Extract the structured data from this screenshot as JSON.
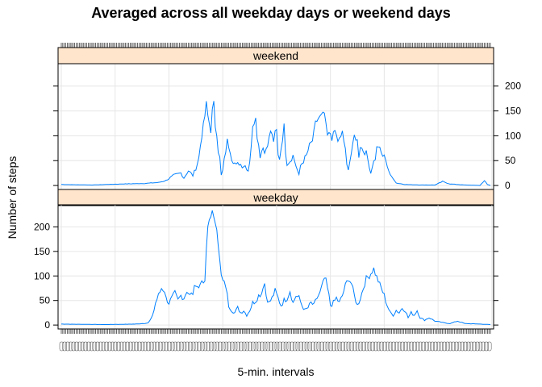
{
  "chart_data": {
    "type": "line",
    "title": "Averaged across all weekday days or weekend days",
    "xlabel": "5-min. intervals",
    "ylabel": "Number of steps",
    "ylim": [
      0,
      240
    ],
    "yticks": [
      0,
      50,
      100,
      150,
      200
    ],
    "x_intervals": 288,
    "grid": true,
    "color": "#0080ff",
    "strip_color": "#ffe5cc",
    "panels": [
      {
        "name": "weekend",
        "keypoints": [
          [
            0,
            2
          ],
          [
            20,
            1
          ],
          [
            40,
            3
          ],
          [
            55,
            4
          ],
          [
            65,
            6
          ],
          [
            70,
            10
          ],
          [
            75,
            20
          ],
          [
            80,
            25
          ],
          [
            82,
            15
          ],
          [
            85,
            30
          ],
          [
            88,
            20
          ],
          [
            90,
            35
          ],
          [
            92,
            55
          ],
          [
            93,
            80
          ],
          [
            95,
            120
          ],
          [
            96,
            140
          ],
          [
            97,
            165
          ],
          [
            98,
            140
          ],
          [
            100,
            110
          ],
          [
            101,
            150
          ],
          [
            102,
            165
          ],
          [
            103,
            120
          ],
          [
            104,
            105
          ],
          [
            105,
            70
          ],
          [
            106,
            55
          ],
          [
            107,
            20
          ],
          [
            108,
            30
          ],
          [
            109,
            50
          ],
          [
            111,
            90
          ],
          [
            113,
            70
          ],
          [
            114,
            55
          ],
          [
            115,
            50
          ],
          [
            117,
            40
          ],
          [
            119,
            45
          ],
          [
            121,
            40
          ],
          [
            123,
            40
          ],
          [
            125,
            30
          ],
          [
            126,
            50
          ],
          [
            127,
            80
          ],
          [
            128,
            115
          ],
          [
            130,
            140
          ],
          [
            131,
            100
          ],
          [
            133,
            60
          ],
          [
            135,
            80
          ],
          [
            136,
            65
          ],
          [
            137,
            75
          ],
          [
            139,
            95
          ],
          [
            140,
            110
          ],
          [
            142,
            90
          ],
          [
            143,
            105
          ],
          [
            144,
            110
          ],
          [
            145,
            60
          ],
          [
            146,
            55
          ],
          [
            148,
            95
          ],
          [
            149,
            120
          ],
          [
            150,
            70
          ],
          [
            151,
            45
          ],
          [
            153,
            50
          ],
          [
            155,
            60
          ],
          [
            157,
            40
          ],
          [
            158,
            30
          ],
          [
            159,
            20
          ],
          [
            160,
            40
          ],
          [
            162,
            50
          ],
          [
            164,
            60
          ],
          [
            166,
            80
          ],
          [
            168,
            90
          ],
          [
            170,
            125
          ],
          [
            172,
            135
          ],
          [
            174,
            140
          ],
          [
            176,
            145
          ],
          [
            177,
            120
          ],
          [
            178,
            100
          ],
          [
            180,
            105
          ],
          [
            181,
            95
          ],
          [
            183,
            110
          ],
          [
            184,
            100
          ],
          [
            185,
            90
          ],
          [
            187,
            95
          ],
          [
            188,
            110
          ],
          [
            190,
            70
          ],
          [
            191,
            40
          ],
          [
            192,
            35
          ],
          [
            193,
            50
          ],
          [
            195,
            80
          ],
          [
            196,
            100
          ],
          [
            198,
            90
          ],
          [
            199,
            60
          ],
          [
            200,
            80
          ],
          [
            202,
            70
          ],
          [
            204,
            65
          ],
          [
            206,
            40
          ],
          [
            207,
            25
          ],
          [
            208,
            40
          ],
          [
            210,
            55
          ],
          [
            211,
            75
          ],
          [
            212,
            80
          ],
          [
            214,
            65
          ],
          [
            215,
            60
          ],
          [
            217,
            55
          ],
          [
            218,
            40
          ],
          [
            220,
            20
          ],
          [
            222,
            15
          ],
          [
            224,
            5
          ],
          [
            230,
            2
          ],
          [
            240,
            1
          ],
          [
            250,
            1
          ],
          [
            255,
            8
          ],
          [
            260,
            3
          ],
          [
            270,
            1
          ],
          [
            280,
            0
          ],
          [
            283,
            10
          ],
          [
            285,
            2
          ],
          [
            287,
            0
          ]
        ]
      },
      {
        "name": "weekday",
        "keypoints": [
          [
            0,
            2
          ],
          [
            30,
            1
          ],
          [
            50,
            2
          ],
          [
            58,
            4
          ],
          [
            60,
            12
          ],
          [
            62,
            30
          ],
          [
            63,
            45
          ],
          [
            65,
            60
          ],
          [
            67,
            75
          ],
          [
            69,
            70
          ],
          [
            70,
            55
          ],
          [
            72,
            45
          ],
          [
            74,
            55
          ],
          [
            76,
            65
          ],
          [
            78,
            50
          ],
          [
            80,
            60
          ],
          [
            82,
            55
          ],
          [
            84,
            70
          ],
          [
            86,
            60
          ],
          [
            88,
            65
          ],
          [
            90,
            85
          ],
          [
            92,
            75
          ],
          [
            94,
            95
          ],
          [
            95,
            80
          ],
          [
            96,
            90
          ],
          [
            97,
            150
          ],
          [
            98,
            200
          ],
          [
            99,
            215
          ],
          [
            100,
            225
          ],
          [
            101,
            230
          ],
          [
            102,
            215
          ],
          [
            103,
            210
          ],
          [
            104,
            200
          ],
          [
            105,
            165
          ],
          [
            106,
            130
          ],
          [
            107,
            100
          ],
          [
            108,
            90
          ],
          [
            110,
            80
          ],
          [
            111,
            60
          ],
          [
            112,
            40
          ],
          [
            114,
            30
          ],
          [
            116,
            25
          ],
          [
            118,
            35
          ],
          [
            120,
            25
          ],
          [
            122,
            30
          ],
          [
            124,
            20
          ],
          [
            126,
            30
          ],
          [
            128,
            45
          ],
          [
            130,
            50
          ],
          [
            132,
            60
          ],
          [
            134,
            65
          ],
          [
            135,
            80
          ],
          [
            136,
            85
          ],
          [
            137,
            60
          ],
          [
            139,
            45
          ],
          [
            141,
            55
          ],
          [
            143,
            70
          ],
          [
            145,
            55
          ],
          [
            147,
            40
          ],
          [
            149,
            50
          ],
          [
            151,
            55
          ],
          [
            153,
            70
          ],
          [
            155,
            45
          ],
          [
            157,
            60
          ],
          [
            159,
            55
          ],
          [
            161,
            40
          ],
          [
            163,
            30
          ],
          [
            165,
            35
          ],
          [
            167,
            45
          ],
          [
            169,
            40
          ],
          [
            171,
            55
          ],
          [
            173,
            65
          ],
          [
            175,
            85
          ],
          [
            176,
            95
          ],
          [
            177,
            90
          ],
          [
            179,
            60
          ],
          [
            180,
            40
          ],
          [
            182,
            45
          ],
          [
            184,
            55
          ],
          [
            186,
            45
          ],
          [
            188,
            60
          ],
          [
            190,
            80
          ],
          [
            192,
            95
          ],
          [
            194,
            85
          ],
          [
            196,
            60
          ],
          [
            198,
            40
          ],
          [
            200,
            55
          ],
          [
            202,
            75
          ],
          [
            204,
            95
          ],
          [
            206,
            100
          ],
          [
            208,
            110
          ],
          [
            209,
            115
          ],
          [
            210,
            105
          ],
          [
            212,
            90
          ],
          [
            214,
            75
          ],
          [
            216,
            60
          ],
          [
            218,
            40
          ],
          [
            220,
            25
          ],
          [
            222,
            20
          ],
          [
            224,
            30
          ],
          [
            226,
            25
          ],
          [
            228,
            35
          ],
          [
            230,
            30
          ],
          [
            232,
            15
          ],
          [
            234,
            25
          ],
          [
            236,
            20
          ],
          [
            238,
            30
          ],
          [
            240,
            15
          ],
          [
            243,
            10
          ],
          [
            246,
            15
          ],
          [
            250,
            8
          ],
          [
            255,
            5
          ],
          [
            260,
            3
          ],
          [
            265,
            8
          ],
          [
            270,
            3
          ],
          [
            280,
            2
          ],
          [
            287,
            1
          ]
        ]
      }
    ]
  }
}
